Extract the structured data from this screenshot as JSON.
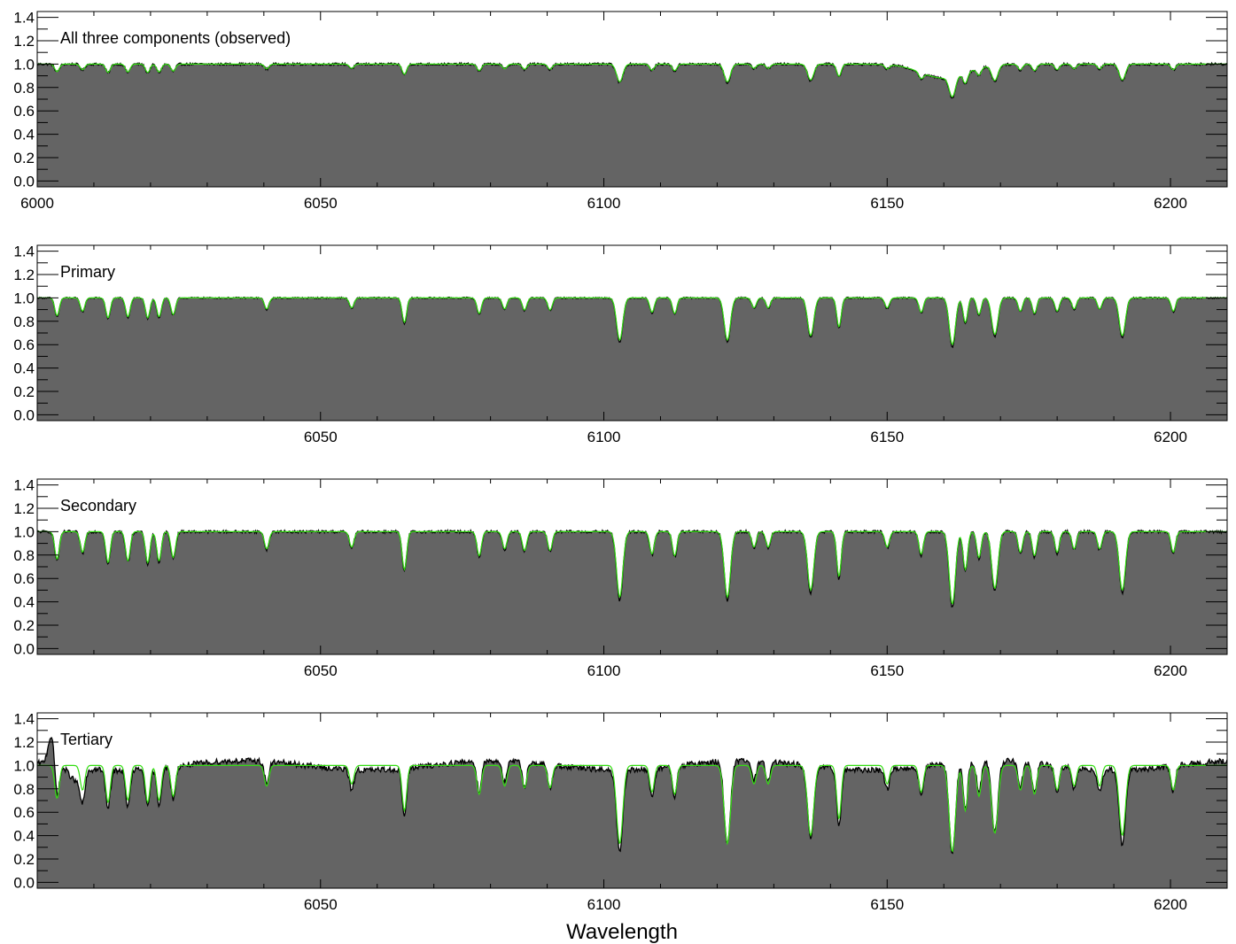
{
  "chart_data": {
    "type": "line",
    "xlabel": "Wavelength",
    "xlim": [
      6000,
      6210
    ],
    "ylim": [
      -0.05,
      1.45
    ],
    "yticks": [
      "0.0",
      "0.2",
      "0.4",
      "0.6",
      "0.8",
      "1.0",
      "1.2",
      "1.4"
    ],
    "xticks": [
      "6000",
      "6050",
      "6100",
      "6150",
      "6200"
    ],
    "colors": {
      "observed": "#000000",
      "model": "#33dd11",
      "fill": "#646464"
    },
    "lines": [
      [
        6003.5,
        0.16
      ],
      [
        6008.0,
        0.12
      ],
      [
        6012.5,
        0.18
      ],
      [
        6016.0,
        0.17
      ],
      [
        6019.5,
        0.18
      ],
      [
        6021.5,
        0.17
      ],
      [
        6024.0,
        0.15
      ],
      [
        6040.5,
        0.1
      ],
      [
        6055.5,
        0.09
      ],
      [
        6064.8,
        0.22
      ],
      [
        6078.0,
        0.14
      ],
      [
        6082.5,
        0.1
      ],
      [
        6086.0,
        0.11
      ],
      [
        6090.5,
        0.11
      ],
      [
        6102.8,
        0.38
      ],
      [
        6108.5,
        0.13
      ],
      [
        6112.5,
        0.14
      ],
      [
        6121.8,
        0.38
      ],
      [
        6126.5,
        0.09
      ],
      [
        6129.0,
        0.09
      ],
      [
        6136.5,
        0.34
      ],
      [
        6141.5,
        0.26
      ],
      [
        6150.0,
        0.09
      ],
      [
        6156.0,
        0.13
      ],
      [
        6161.5,
        0.42
      ],
      [
        6163.8,
        0.22
      ],
      [
        6166.2,
        0.15
      ],
      [
        6169.0,
        0.33
      ],
      [
        6173.5,
        0.12
      ],
      [
        6176.0,
        0.14
      ],
      [
        6180.0,
        0.12
      ],
      [
        6183.0,
        0.1
      ],
      [
        6187.5,
        0.1
      ],
      [
        6191.5,
        0.34
      ],
      [
        6200.5,
        0.12
      ]
    ],
    "panels": [
      {
        "label": "All three components (observed)",
        "show_xtick_labels": [
          "6000",
          "6050",
          "6100",
          "6150",
          "6200"
        ],
        "depth_scale": 0.42,
        "bump_center": 6160,
        "bump_depth": 0.12,
        "noise": 0.01,
        "model_tilt": 0.0,
        "tertiary_peak": false
      },
      {
        "label": "Primary",
        "show_xtick_labels": [
          "6050",
          "6100",
          "6150",
          "6200"
        ],
        "depth_scale": 1.0,
        "bump_center": 0,
        "bump_depth": 0,
        "noise": 0.006,
        "model_tilt": 0.0,
        "tertiary_peak": false
      },
      {
        "label": "Secondary",
        "show_xtick_labels": [
          "6050",
          "6100",
          "6150",
          "6200"
        ],
        "depth_scale": 1.55,
        "bump_center": 0,
        "bump_depth": 0,
        "noise": 0.012,
        "model_tilt": 0.02,
        "tertiary_peak": false
      },
      {
        "label": "Tertiary",
        "show_xtick_labels": [
          "6050",
          "6100",
          "6150",
          "6200"
        ],
        "depth_scale": 1.85,
        "bump_center": 0,
        "bump_depth": 0,
        "noise": 0.025,
        "model_tilt": 0.03,
        "tertiary_peak": true
      }
    ]
  }
}
